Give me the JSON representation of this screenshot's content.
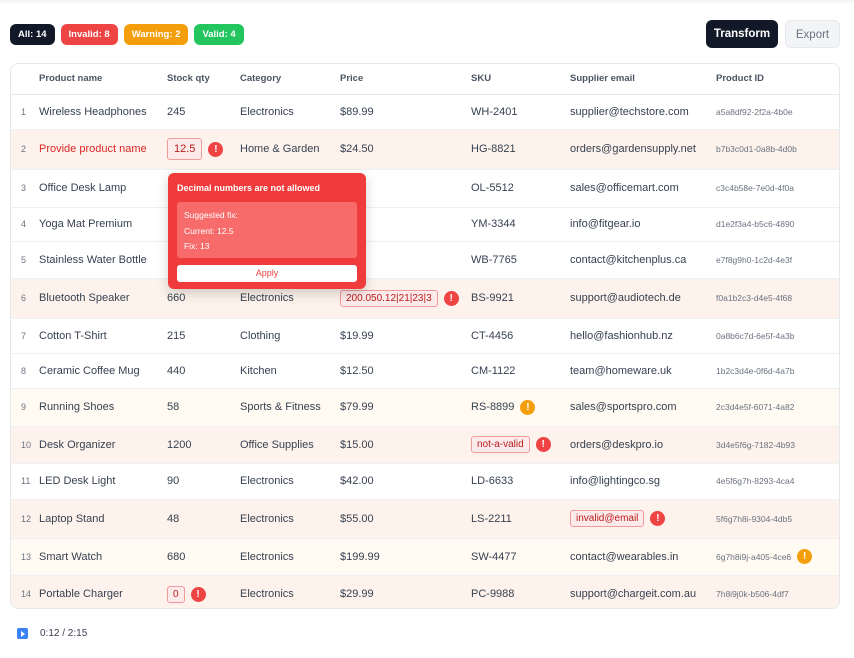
{
  "filters": [
    {
      "label": "All: 14",
      "kind": "all"
    },
    {
      "label": "Invalid: 8",
      "kind": "invalid"
    },
    {
      "label": "Warning: 2",
      "kind": "warning"
    },
    {
      "label": "Valid: 4",
      "kind": "valid"
    }
  ],
  "actions": {
    "transform": "Transform",
    "export": "Export"
  },
  "columns": [
    "Product name",
    "Stock qty",
    "Category",
    "Price",
    "SKU",
    "Supplier email",
    "Product ID"
  ],
  "rows": [
    {
      "n": "1",
      "name": "Wireless Headphones",
      "stock": "245",
      "category": "Electronics",
      "price": "$89.99",
      "sku": "WH-2401",
      "email": "supplier@techstore.com",
      "pid": "a5a8df92-2f2a-4b0e",
      "tone": "even"
    },
    {
      "n": "2",
      "name": "Provide product name",
      "stock": "12.5",
      "category": "Home & Garden",
      "price": "$24.50",
      "sku": "HG-8821",
      "email": "orders@gardensupply.net",
      "pid": "b7b3c0d1-0a8b-4d0b",
      "tone": "err"
    },
    {
      "n": "3",
      "name": "Office Desk Lamp",
      "stock": "",
      "category": "",
      "price": ".00",
      "sku": "OL-5512",
      "email": "sales@officemart.com",
      "pid": "c3c4b58e-7e0d-4f0a",
      "tone": "even"
    },
    {
      "n": "4",
      "name": "Yoga Mat Premium",
      "stock": "",
      "category": "",
      "price": ".99",
      "sku": "YM-3344",
      "email": "info@fitgear.io",
      "pid": "d1e2f3a4-b5c6-4890",
      "tone": "even"
    },
    {
      "n": "5",
      "name": "Stainless Water Bottle",
      "stock": "",
      "category": "",
      "price": ".99",
      "sku": "WB-7765",
      "email": "contact@kitchenplus.ca",
      "pid": "e7f8g9h0-1c2d-4e3f",
      "tone": "even"
    },
    {
      "n": "6",
      "name": "Bluetooth Speaker",
      "stock": "660",
      "category": "Electronics",
      "price": "200.050.12|21|23|3",
      "sku": "BS-9921",
      "email": "support@audiotech.de",
      "pid": "f0a1b2c3-d4e5-4f68",
      "tone": "err"
    },
    {
      "n": "7",
      "name": "Cotton T-Shirt",
      "stock": "215",
      "category": "Clothing",
      "price": "$19.99",
      "sku": "CT-4456",
      "email": "hello@fashionhub.nz",
      "pid": "0a8b6c7d-6e5f-4a3b",
      "tone": "even"
    },
    {
      "n": "8",
      "name": "Ceramic Coffee Mug",
      "stock": "440",
      "category": "Kitchen",
      "price": "$12.50",
      "sku": "CM-1122",
      "email": "team@homeware.uk",
      "pid": "1b2c3d4e-0f6d-4a7b",
      "tone": "even"
    },
    {
      "n": "9",
      "name": "Running Shoes",
      "stock": "58",
      "category": "Sports & Fitness",
      "price": "$79.99",
      "sku": "RS-8899",
      "email": "sales@sportspro.com",
      "pid": "2c3d4e5f-6071-4a82",
      "tone": "warn"
    },
    {
      "n": "10",
      "name": "Desk Organizer",
      "stock": "1200",
      "category": "Office Supplies",
      "price": "$15.00",
      "sku": "not-a-valid",
      "email": "orders@deskpro.io",
      "pid": "3d4e5f6g-7182-4b93",
      "tone": "err"
    },
    {
      "n": "11",
      "name": "LED Desk Light",
      "stock": "90",
      "category": "Electronics",
      "price": "$42.00",
      "sku": "LD-6633",
      "email": "info@lightingco.sg",
      "pid": "4e5f6g7h-8293-4ca4",
      "tone": "even"
    },
    {
      "n": "12",
      "name": "Laptop Stand",
      "stock": "48",
      "category": "Electronics",
      "price": "$55.00",
      "sku": "LS-2211",
      "email": "invalid@email",
      "pid": "5f6g7h8i-9304-4db5",
      "tone": "err"
    },
    {
      "n": "13",
      "name": "Smart Watch",
      "stock": "680",
      "category": "Electronics",
      "price": "$199.99",
      "sku": "SW-4477",
      "email": "contact@wearables.in",
      "pid": "6g7h8i9j-a405-4ce6",
      "tone": "warn"
    },
    {
      "n": "14",
      "name": "Portable Charger",
      "stock": "0",
      "category": "Electronics",
      "price": "$29.99",
      "sku": "PC-9988",
      "email": "support@chargeit.com.au",
      "pid": "7h8i9j0k-b506-4df7",
      "tone": "err"
    }
  ],
  "popup": {
    "title": "Decimal numbers are not allowed",
    "suggested": "Suggested fix:",
    "current": "Current: 12.5",
    "fix": "Fix: 13",
    "apply": "Apply"
  },
  "player": {
    "time": "0:12 / 2:15"
  },
  "colors": {
    "invalid": "#ef4444",
    "warning": "#f59e0b",
    "valid": "#22c55e",
    "dark": "#111827"
  }
}
